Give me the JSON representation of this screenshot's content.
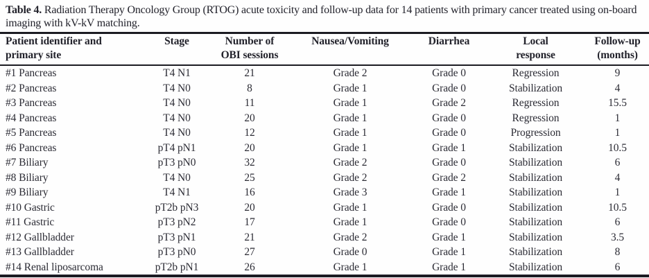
{
  "caption": {
    "label": "Table 4.",
    "text": " Radiation Therapy Oncology Group (RTOG) acute toxicity and follow-up data for 14 patients with primary cancer treated using on-board imaging with kV-kV matching."
  },
  "table": {
    "columns": [
      {
        "label": "Patient identifier and\nprimary site",
        "align": "left"
      },
      {
        "label": "Stage",
        "align": "center"
      },
      {
        "label": "Number of\nOBI sessions",
        "align": "center"
      },
      {
        "label": "Nausea/Vomiting",
        "align": "center"
      },
      {
        "label": "Diarrhea",
        "align": "center"
      },
      {
        "label": "Local\nresponse",
        "align": "center"
      },
      {
        "label": "Follow-up\n(months)",
        "align": "center"
      }
    ],
    "rows": [
      [
        "#1 Pancreas",
        "T4 N1",
        "21",
        "Grade 2",
        "Grade 0",
        "Regression",
        "9"
      ],
      [
        "#2 Pancreas",
        "T4 N0",
        "8",
        "Grade 1",
        "Grade 0",
        "Stabilization",
        "4"
      ],
      [
        "#3 Pancreas",
        "T4 N0",
        "11",
        "Grade 1",
        "Grade 2",
        "Regression",
        "15.5"
      ],
      [
        "#4 Pancreas",
        "T4 N0",
        "20",
        "Grade 1",
        "Grade 0",
        "Regression",
        "1"
      ],
      [
        "#5 Pancreas",
        "T4 N0",
        "12",
        "Grade 1",
        "Grade 0",
        "Progression",
        "1"
      ],
      [
        "#6 Pancreas",
        "pT4 pN1",
        "20",
        "Grade 1",
        "Grade 1",
        "Stabilization",
        "10.5"
      ],
      [
        "#7 Biliary",
        "pT3 pN0",
        "32",
        "Grade 2",
        "Grade 0",
        "Stabilization",
        "6"
      ],
      [
        "#8 Biliary",
        "T4 N0",
        "25",
        "Grade 2",
        "Grade 2",
        "Stabilization",
        "4"
      ],
      [
        "#9 Biliary",
        "T4 N1",
        "16",
        "Grade 3",
        "Grade 1",
        "Stabilization",
        "1"
      ],
      [
        "#10 Gastric",
        "pT2b pN3",
        "20",
        "Grade 1",
        "Grade 0",
        "Stabilization",
        "10.5"
      ],
      [
        "#11 Gastric",
        "pT3 pN2",
        "17",
        "Grade 1",
        "Grade 0",
        "Stabilization",
        "6"
      ],
      [
        "#12 Gallbladder",
        "pT3 pN1",
        "21",
        "Grade 2",
        "Grade 1",
        "Stabilization",
        "3.5"
      ],
      [
        "#13 Gallbladder",
        "pT3 pN0",
        "27",
        "Grade 0",
        "Grade 1",
        "Stabilization",
        "8"
      ],
      [
        "#14 Renal liposarcoma",
        "pT2b pN1",
        "26",
        "Grade 1",
        "Grade 1",
        "Stabilization",
        "6"
      ]
    ]
  },
  "colors": {
    "text": "#2b2b34",
    "rule": "#1b1b22",
    "background": "#fefefe"
  }
}
